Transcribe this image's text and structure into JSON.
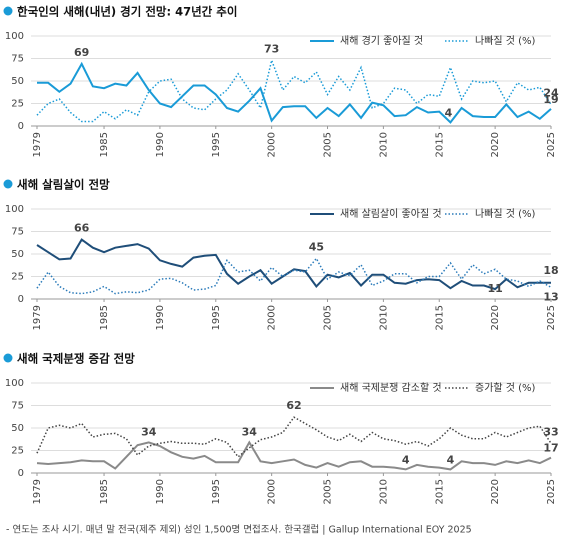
{
  "chart_data": [
    {
      "type": "line",
      "title": "한국인의 새해(내년) 경기 전망: 47년간 추이",
      "legend": "upper right",
      "x": [
        1979,
        1980,
        1981,
        1982,
        1983,
        1984,
        1985,
        1986,
        1987,
        1988,
        1989,
        1990,
        1991,
        1992,
        1993,
        1994,
        1995,
        1996,
        1997,
        1998,
        1999,
        2000,
        2001,
        2002,
        2003,
        2004,
        2005,
        2006,
        2007,
        2008,
        2009,
        2010,
        2011,
        2012,
        2013,
        2014,
        2015,
        2016,
        2017,
        2018,
        2019,
        2020,
        2021,
        2022,
        2023,
        2024,
        2025
      ],
      "xlim": [
        1979,
        2025
      ],
      "xticks": [
        1979,
        1985,
        1990,
        1995,
        2000,
        2005,
        2010,
        2015,
        2020,
        2025
      ],
      "ylim": [
        0,
        100
      ],
      "yticks": [
        0,
        25,
        50,
        75,
        100
      ],
      "grid": true,
      "series": [
        {
          "name": "새해 경기 좋아질 것",
          "color": "#1a9bd7",
          "line_style": "solid",
          "values": [
            48,
            48,
            38,
            47,
            69,
            44,
            42,
            47,
            45,
            59,
            40,
            25,
            21,
            33,
            45,
            45,
            35,
            20,
            16,
            28,
            42,
            6,
            21,
            22,
            22,
            9,
            20,
            11,
            24,
            9,
            26,
            23,
            11,
            12,
            21,
            15,
            16,
            4,
            20,
            11,
            10,
            10,
            24,
            10,
            16,
            8,
            19
          ]
        },
        {
          "name": "나빠질 것 (%)",
          "color": "#1a9bd7",
          "line_style": "dotted",
          "values": [
            12,
            25,
            30,
            15,
            5,
            5,
            16,
            8,
            18,
            12,
            38,
            50,
            52,
            30,
            20,
            18,
            30,
            40,
            58,
            40,
            20,
            73,
            40,
            55,
            48,
            60,
            35,
            55,
            40,
            65,
            20,
            25,
            42,
            40,
            25,
            35,
            33,
            65,
            30,
            50,
            48,
            50,
            27,
            48,
            40,
            43,
            24
          ]
        }
      ]
    },
    {
      "type": "line",
      "title": "새해 살림살이 전망",
      "legend": "upper right",
      "x": [
        1979,
        1980,
        1981,
        1982,
        1983,
        1984,
        1985,
        1986,
        1987,
        1988,
        1989,
        1990,
        1991,
        1992,
        1993,
        1994,
        1995,
        1996,
        1997,
        1998,
        1999,
        2000,
        2001,
        2002,
        2003,
        2004,
        2005,
        2006,
        2007,
        2008,
        2009,
        2010,
        2011,
        2012,
        2013,
        2014,
        2015,
        2016,
        2017,
        2018,
        2019,
        2020,
        2021,
        2022,
        2023,
        2024,
        2025
      ],
      "xlim": [
        1979,
        2025
      ],
      "xticks": [
        1979,
        1985,
        1990,
        1995,
        2000,
        2005,
        2010,
        2015,
        2020,
        2025
      ],
      "ylim": [
        0,
        100
      ],
      "yticks": [
        0,
        25,
        50,
        75,
        100
      ],
      "grid": true,
      "series": [
        {
          "name": "새해 살림살이 좋아질 것",
          "color": "#1f4e79",
          "line_style": "solid",
          "values": [
            60,
            52,
            44,
            45,
            66,
            57,
            52,
            57,
            59,
            61,
            56,
            43,
            39,
            36,
            46,
            48,
            49,
            28,
            17,
            25,
            32,
            17,
            25,
            33,
            31,
            14,
            27,
            24,
            29,
            15,
            27,
            27,
            18,
            17,
            21,
            22,
            21,
            12,
            20,
            15,
            15,
            11,
            22,
            13,
            18,
            18,
            18
          ]
        },
        {
          "name": "나빠질 것 (%)",
          "color": "#2b7bba",
          "line_style": "dotted",
          "values": [
            12,
            30,
            14,
            7,
            6,
            8,
            14,
            6,
            8,
            7,
            10,
            22,
            23,
            18,
            10,
            11,
            15,
            43,
            30,
            32,
            20,
            35,
            25,
            32,
            30,
            45,
            22,
            30,
            26,
            38,
            15,
            20,
            28,
            28,
            18,
            25,
            25,
            40,
            22,
            38,
            28,
            33,
            22,
            20,
            14,
            20,
            13
          ]
        }
      ]
    },
    {
      "type": "line",
      "title": "새해 국제분쟁 증감 전망",
      "legend": "upper right",
      "x": [
        1979,
        1980,
        1981,
        1982,
        1983,
        1984,
        1985,
        1986,
        1987,
        1988,
        1989,
        1990,
        1991,
        1992,
        1993,
        1994,
        1995,
        1996,
        1997,
        1998,
        1999,
        2000,
        2001,
        2002,
        2003,
        2004,
        2005,
        2006,
        2007,
        2008,
        2009,
        2010,
        2011,
        2012,
        2013,
        2014,
        2015,
        2016,
        2017,
        2018,
        2019,
        2020,
        2021,
        2022,
        2023,
        2024,
        2025
      ],
      "xlim": [
        1979,
        2025
      ],
      "xticks": [
        1979,
        1985,
        1990,
        1995,
        2000,
        2005,
        2010,
        2015,
        2020,
        2025
      ],
      "ylim": [
        0,
        100
      ],
      "yticks": [
        0,
        25,
        50,
        75,
        100
      ],
      "grid": true,
      "series": [
        {
          "name": "새해 국제분쟁 감소할 것",
          "color": "#8a8a8a",
          "line_style": "solid",
          "values": [
            11,
            10,
            11,
            12,
            14,
            13,
            13,
            5,
            18,
            31,
            34,
            30,
            23,
            18,
            16,
            19,
            12,
            12,
            12,
            34,
            13,
            11,
            13,
            15,
            9,
            6,
            11,
            7,
            12,
            13,
            7,
            7,
            6,
            4,
            9,
            7,
            6,
            4,
            13,
            11,
            11,
            9,
            13,
            11,
            14,
            11,
            17
          ]
        },
        {
          "name": "증가할 것 (%)",
          "color": "#444444",
          "line_style": "dotted",
          "values": [
            22,
            50,
            53,
            50,
            55,
            40,
            43,
            44,
            38,
            20,
            30,
            33,
            35,
            33,
            33,
            32,
            38,
            34,
            18,
            28,
            37,
            40,
            45,
            62,
            55,
            48,
            40,
            36,
            43,
            35,
            45,
            38,
            36,
            32,
            35,
            30,
            38,
            50,
            42,
            38,
            38,
            45,
            40,
            45,
            50,
            52,
            33
          ]
        }
      ]
    }
  ],
  "note": "- 연도는 조사 시기. 매년 말 전국(제주 제외) 성인 1,500명 면접조사. 한국갤럽 | Gallup International EOY 2025"
}
